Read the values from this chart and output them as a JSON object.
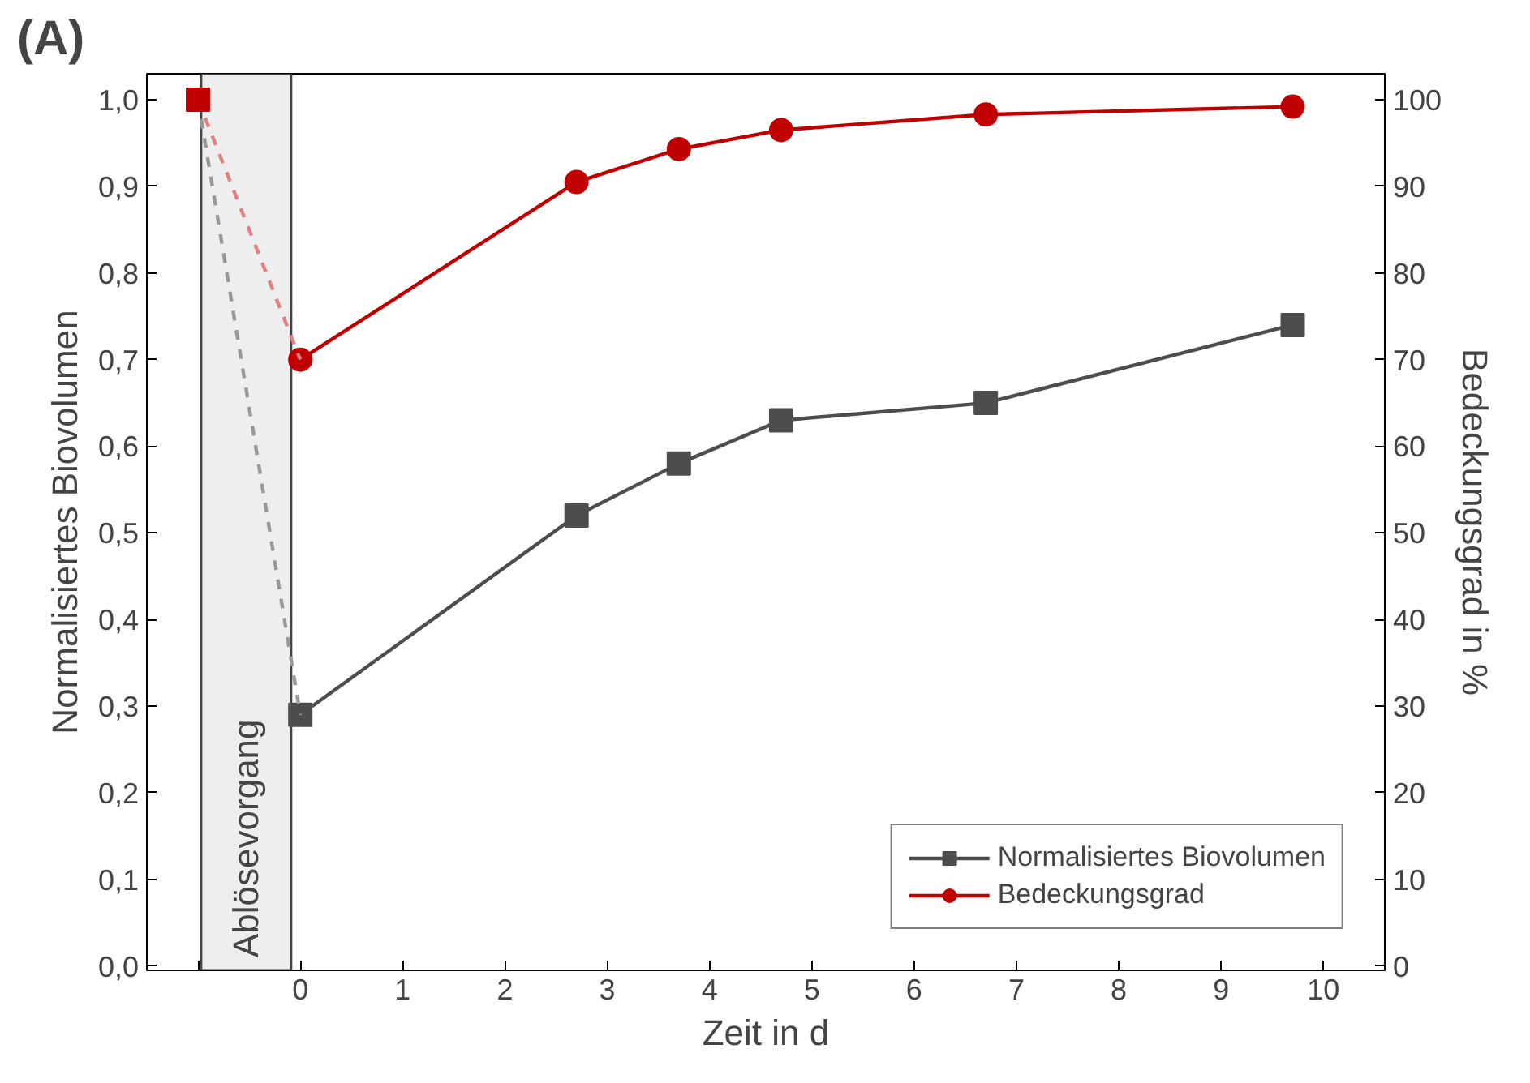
{
  "chart_data": {
    "type": "line",
    "title": "(A)",
    "xlabel": "Zeit in d",
    "ylabel": "Normalisiertes Biovolumen",
    "y2label": "Bedeckungsgrad in %",
    "series": [
      {
        "name": "Normalisiertes Biovolumen",
        "color": "#4d4d4d",
        "marker": "square",
        "x": [
          0,
          2.7,
          3.7,
          4.7,
          6.7,
          9.7
        ],
        "values": [
          0.29,
          0.52,
          0.58,
          0.63,
          0.65,
          0.74
        ]
      },
      {
        "name": "Bedeckungsgrad",
        "color": "#c00000",
        "marker": "circle",
        "axis": "y2",
        "x": [
          0,
          2.7,
          3.7,
          4.7,
          6.7,
          9.7
        ],
        "values": [
          70,
          90.5,
          94.3,
          96.5,
          98.3,
          99.2
        ]
      },
      {
        "color": "#999999",
        "marker": "none",
        "line_style": "dashed",
        "x": [
          -1,
          0
        ],
        "values": [
          1.0,
          0.29
        ]
      },
      {
        "color": "#e08080",
        "marker": "none",
        "line_style": "dashed",
        "axis": "y2",
        "x": [
          -1,
          0
        ],
        "values": [
          100,
          70
        ]
      },
      {
        "color": "#c00000",
        "marker": "square",
        "line_style": "none",
        "axis": "y2",
        "x": [
          -1
        ],
        "values": [
          100
        ]
      }
    ],
    "bands": [
      {
        "axis": "x",
        "from": -0.97,
        "to": -0.09,
        "label": "Ablösevorgang",
        "color": "#eeeeee"
      }
    ],
    "xlim": [
      -1.5,
      10.6
    ],
    "xticks": [
      {
        "value": -1,
        "label": null
      },
      0,
      1,
      2,
      3,
      4,
      5,
      6,
      7,
      8,
      9,
      10
    ],
    "ylim": [
      -0.005,
      1.03
    ],
    "yticks": [
      {
        "value": 0,
        "label": "0,0"
      },
      {
        "value": 0.1,
        "label": "0,1"
      },
      {
        "value": 0.2,
        "label": "0,2"
      },
      {
        "value": 0.3,
        "label": "0,3"
      },
      {
        "value": 0.4,
        "label": "0,4"
      },
      {
        "value": 0.5,
        "label": "0,5"
      },
      {
        "value": 0.6,
        "label": "0,6"
      },
      {
        "value": 0.7,
        "label": "0,7"
      },
      {
        "value": 0.8,
        "label": "0,8"
      },
      {
        "value": 0.9,
        "label": "0,9"
      },
      {
        "value": 1.0,
        "label": "1,0"
      }
    ],
    "y2lim": [
      -0.5,
      103
    ],
    "y2ticks": [
      0,
      10,
      20,
      30,
      40,
      50,
      60,
      70,
      80,
      90,
      100
    ],
    "grid": false,
    "legend": "bottom right"
  }
}
